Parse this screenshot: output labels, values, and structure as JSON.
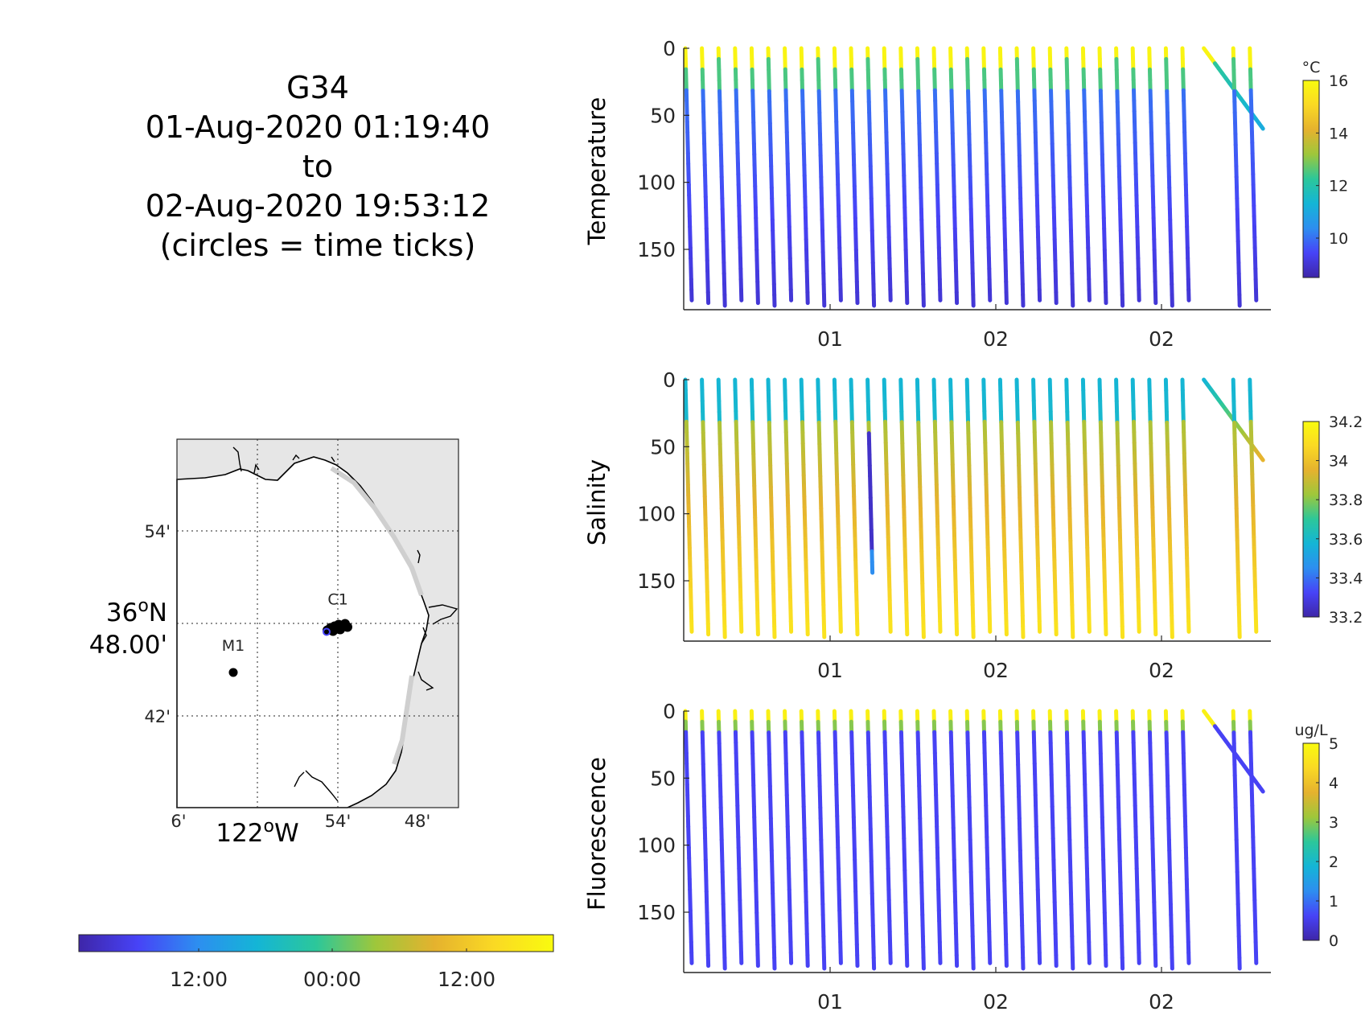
{
  "title_block": {
    "lines": [
      "G34",
      "01-Aug-2020 01:19:40",
      "to",
      "02-Aug-2020 19:53:12",
      "(circles = time ticks)"
    ]
  },
  "colors": {
    "parula": [
      "#3e26a8",
      "#4743f7",
      "#2d8ef0",
      "#14b5d6",
      "#2cc79a",
      "#9ec73b",
      "#e5b22e",
      "#fad924",
      "#f9fb0e"
    ],
    "axis": "#262626",
    "land": "#e6e6e6"
  },
  "chart_data": [
    {
      "type": "scatter",
      "name": "temperature-profiles",
      "ylabel": "Temperature",
      "ylim": [
        0,
        195
      ],
      "y_reversed": true,
      "yticks": [
        0,
        50,
        100,
        150
      ],
      "xtick_labels": [
        "01",
        "02",
        "02"
      ],
      "colorbar": {
        "unit": "°C",
        "range": [
          8.5,
          16
        ],
        "ticks": [
          10,
          12,
          14,
          16
        ]
      },
      "profile_count": 34,
      "max_depth": 188,
      "values": {
        "surface": 15.8,
        "upper": 12.5,
        "mid": 10.2,
        "deep": 9.0
      }
    },
    {
      "type": "scatter",
      "name": "salinity-profiles",
      "ylabel": "Salinity",
      "ylim": [
        0,
        195
      ],
      "y_reversed": true,
      "yticks": [
        0,
        50,
        100,
        150
      ],
      "xtick_labels": [
        "01",
        "02",
        "02"
      ],
      "colorbar": {
        "unit": "",
        "range": [
          33.2,
          34.2
        ],
        "ticks": [
          "33.2",
          "33.4",
          "33.6",
          "33.8",
          "34",
          "34.2"
        ]
      },
      "profile_count": 34,
      "max_depth": 188,
      "values": {
        "surface": 33.58,
        "upper": 33.8,
        "mid": 34.0,
        "deep": 34.1
      },
      "anomaly_profile": {
        "index": 11,
        "depth_range": [
          40,
          140
        ],
        "value": 33.25
      }
    },
    {
      "type": "scatter",
      "name": "fluorescence-profiles",
      "ylabel": "Fluorescence",
      "ylim": [
        0,
        195
      ],
      "y_reversed": true,
      "yticks": [
        0,
        50,
        100,
        150
      ],
      "xtick_labels": [
        "01",
        "02",
        "02"
      ],
      "colorbar": {
        "unit": "ug/L",
        "range": [
          0,
          5
        ],
        "ticks": [
          0,
          1,
          2,
          3,
          4,
          5
        ]
      },
      "profile_count": 34,
      "max_depth": 188,
      "values": {
        "surface": 4.8,
        "upper": 3.0,
        "below": 0.6
      }
    },
    {
      "type": "scatter",
      "name": "glider-track-map",
      "lat_ticks": [
        "54'",
        "42'"
      ],
      "lat_label": [
        "36ºN",
        "48.00'"
      ],
      "lon_ticks": [
        "6'",
        "54'",
        "48'"
      ],
      "lon_label": "122ºW",
      "stations": [
        {
          "name": "M1",
          "lon": -122.03,
          "lat": 36.747
        },
        {
          "name": "C1",
          "lon": -121.9,
          "lat": 36.797
        }
      ],
      "time_colorbar": {
        "ticks": [
          "12:00",
          "00:00",
          "12:00"
        ]
      }
    }
  ]
}
